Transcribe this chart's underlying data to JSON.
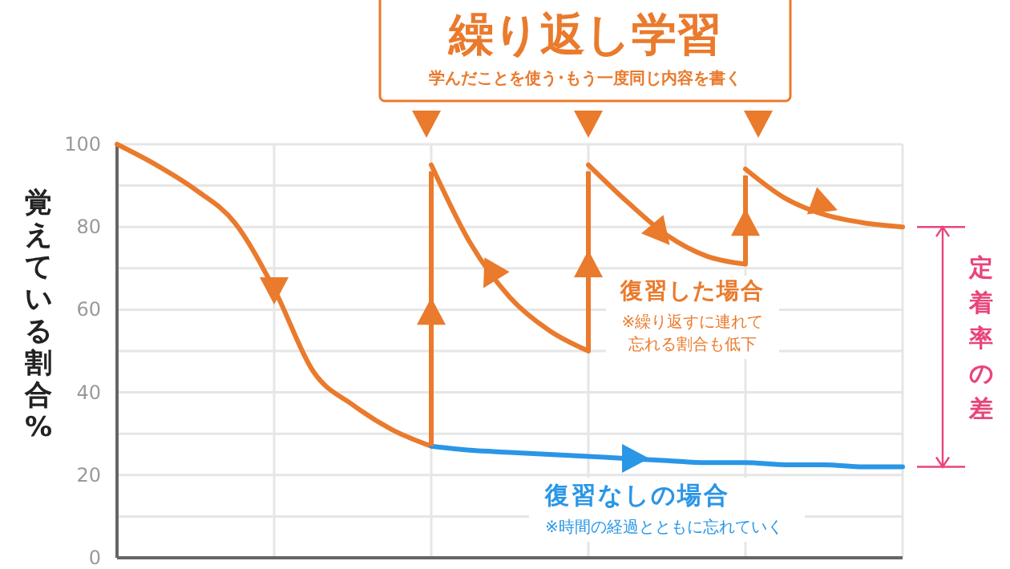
{
  "chart_data": {
    "type": "line",
    "title": "繰り返し学習",
    "subtitle": "学んだことを使う･もう一度同じ内容を書く",
    "ylabel": "覚えている割合%",
    "categories": [
      null,
      null,
      null,
      null,
      null,
      null,
      null,
      null,
      null,
      null,
      null,
      null,
      null,
      null,
      null,
      null,
      null,
      null,
      null,
      null,
      null
    ],
    "ylim": [
      0,
      100
    ],
    "yticks": [
      0,
      {
        "value": 10,
        "label": null
      },
      20,
      {
        "value": 30,
        "label": null
      },
      40,
      {
        "value": 50,
        "label": null
      },
      60,
      {
        "value": 70,
        "label": null
      },
      80,
      {
        "value": 90,
        "label": null
      },
      100
    ],
    "tick_labels": "y",
    "grid": true,
    "marker": "none",
    "line_style": "solid",
    "series": [
      {
        "name": "復習した場合",
        "color": "#ea7a2c",
        "values": [
          100,
          95,
          89,
          81,
          65,
          45,
          37,
          31,
          27,
          null,
          null,
          null,
          null,
          null,
          null,
          null,
          null,
          null,
          null,
          null,
          null
        ]
      },
      {
        "color": "#ea7a2c",
        "values": [
          null,
          null,
          null,
          null,
          null,
          null,
          null,
          null,
          95,
          76,
          63,
          55,
          50,
          null,
          null,
          null,
          null,
          null,
          null,
          null,
          null
        ]
      },
      {
        "color": "#ea7a2c",
        "values": [
          null,
          null,
          null,
          null,
          null,
          null,
          null,
          null,
          null,
          null,
          null,
          null,
          95,
          86,
          78,
          73,
          71,
          null,
          null,
          null,
          null
        ]
      },
      {
        "color": "#ea7a2c",
        "values": [
          null,
          null,
          null,
          null,
          null,
          null,
          null,
          null,
          null,
          null,
          null,
          null,
          null,
          null,
          null,
          null,
          94,
          87,
          83,
          81,
          80
        ]
      },
      {
        "name": "復習なしの場合",
        "color": "#2a96e6",
        "values": [
          null,
          null,
          null,
          null,
          null,
          null,
          null,
          null,
          27,
          26,
          25.5,
          25,
          24.5,
          24,
          23.5,
          23,
          23,
          22.5,
          22.5,
          22,
          22
        ]
      }
    ],
    "annotations": [
      "※繰り返すに連れて忘れる割合も低下",
      "※時間の経過とともに忘れていく",
      "定着率の差"
    ]
  }
}
